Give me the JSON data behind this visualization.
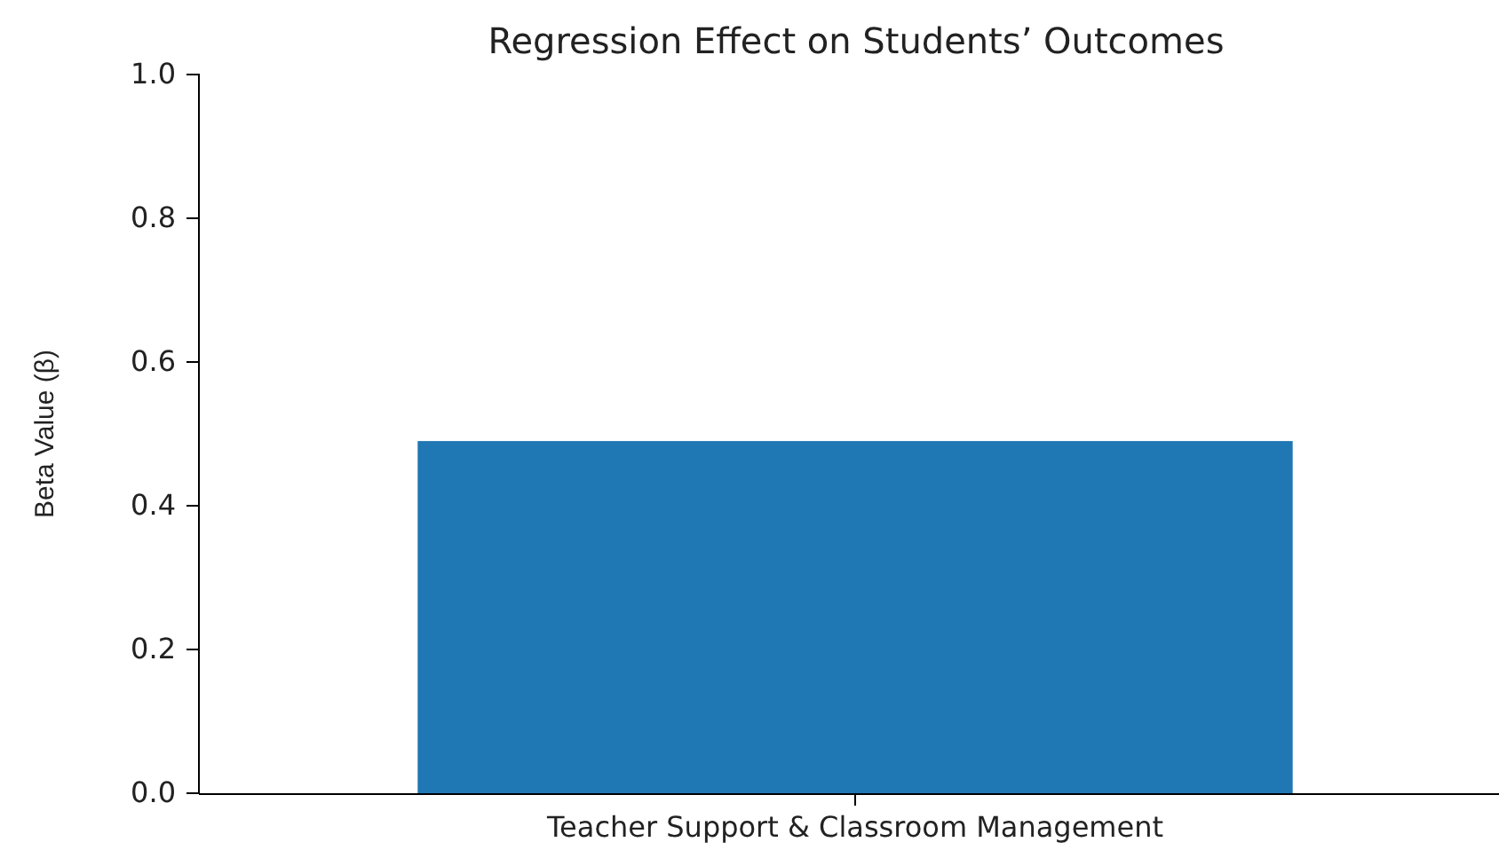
{
  "chart_data": {
    "type": "bar",
    "title": "Regression Effect on Students’ Outcomes",
    "ylabel": "Beta Value (β)",
    "categories": [
      "Teacher Support & Classroom Management"
    ],
    "values": [
      0.49
    ],
    "color": "#1f77b4",
    "ylim": [
      0,
      1
    ],
    "yticks": [
      {
        "value": 0,
        "label": "0.0"
      },
      {
        "value": 0.2,
        "label": "0.2"
      },
      {
        "value": 0.4,
        "label": "0.4"
      },
      {
        "value": 0.6,
        "label": "0.6"
      },
      {
        "value": 0.8,
        "label": "0.8"
      },
      {
        "value": 1,
        "label": "1.0"
      }
    ]
  }
}
